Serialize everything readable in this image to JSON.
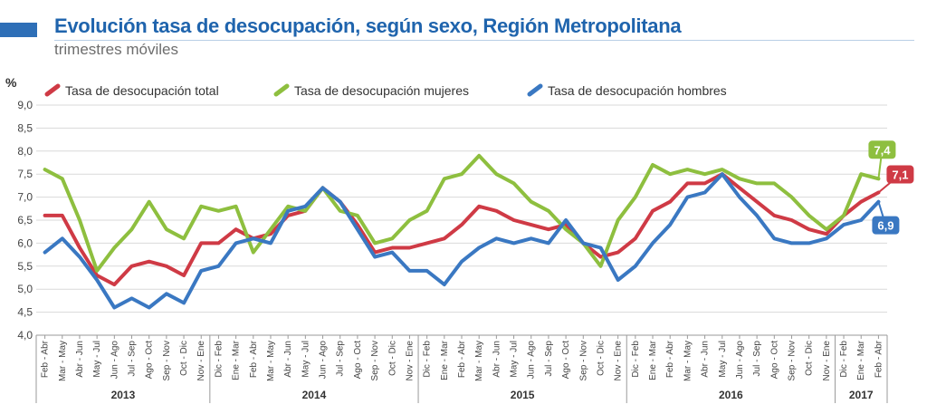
{
  "header": {
    "title": "Evolución tasa de desocupación, según sexo, Región Metropolitana",
    "subtitle": "trimestres móviles"
  },
  "chart_data": {
    "type": "line",
    "ylabel": "%",
    "ylim": [
      4.0,
      9.0
    ],
    "yticks": [
      "4,0",
      "4,5",
      "5,0",
      "5,5",
      "6,0",
      "6,5",
      "7,0",
      "7,5",
      "8,0",
      "8,5",
      "9,0"
    ],
    "grid": true,
    "legend_position": "top",
    "categories": [
      "Feb - Abr",
      "Mar - May",
      "Abr - Jun",
      "May - Jul",
      "Jun - Ago",
      "Jul - Sep",
      "Ago - Oct",
      "Sep - Nov",
      "Oct - Dic",
      "Nov - Ene",
      "Dic - Feb",
      "Ene - Mar",
      "Feb - Abr",
      "Mar - May",
      "Abr - Jun",
      "May - Jul",
      "Jun - Ago",
      "Jul - Sep",
      "Ago - Oct",
      "Sep - Nov",
      "Oct - Dic",
      "Nov - Ene",
      "Dic - Feb",
      "Ene - Mar",
      "Feb - Abr",
      "Mar - May",
      "Abr - Jun",
      "May - Jul",
      "Jun - Ago",
      "Jul - Sep",
      "Ago - Oct",
      "Sep - Nov",
      "Oct - Dic",
      "Nov - Ene",
      "Dic - Feb",
      "Ene - Mar",
      "Feb - Abr",
      "Mar - May",
      "Abr - Jun",
      "May - Jul",
      "Jun - Ago",
      "Jul - Sep",
      "Ago - Oct",
      "Sep - Nov",
      "Oct - Dic",
      "Nov - Ene",
      "Dic - Feb",
      "Ene - Mar",
      "Feb - Abr"
    ],
    "years": [
      {
        "label": "2013",
        "start": 0,
        "end": 9
      },
      {
        "label": "2014",
        "start": 10,
        "end": 21
      },
      {
        "label": "2015",
        "start": 22,
        "end": 33
      },
      {
        "label": "2016",
        "start": 34,
        "end": 45
      },
      {
        "label": "2017",
        "start": 46,
        "end": 48
      }
    ],
    "series": [
      {
        "name": "Tasa de desocupación total",
        "color": "#cf3a45",
        "values": [
          6.6,
          6.6,
          5.9,
          5.3,
          5.1,
          5.5,
          5.6,
          5.5,
          5.3,
          6.0,
          6.0,
          6.3,
          6.1,
          6.2,
          6.6,
          6.7,
          7.2,
          6.9,
          6.4,
          5.8,
          5.9,
          5.9,
          6.0,
          6.1,
          6.4,
          6.8,
          6.7,
          6.5,
          6.4,
          6.3,
          6.4,
          6.0,
          5.7,
          5.8,
          6.1,
          6.7,
          6.9,
          7.3,
          7.3,
          7.5,
          7.2,
          6.9,
          6.6,
          6.5,
          6.3,
          6.2,
          6.6,
          6.9,
          7.1
        ],
        "end_label": "7,1"
      },
      {
        "name": "Tasa de desocupación mujeres",
        "color": "#8ebf3f",
        "values": [
          7.6,
          7.4,
          6.5,
          5.4,
          5.9,
          6.3,
          6.9,
          6.3,
          6.1,
          6.8,
          6.7,
          6.8,
          5.8,
          6.3,
          6.8,
          6.7,
          7.2,
          6.7,
          6.6,
          6.0,
          6.1,
          6.5,
          6.7,
          7.4,
          7.5,
          7.9,
          7.5,
          7.3,
          6.9,
          6.7,
          6.3,
          6.0,
          5.5,
          6.5,
          7.0,
          7.7,
          7.5,
          7.6,
          7.5,
          7.6,
          7.4,
          7.3,
          7.3,
          7.0,
          6.6,
          6.3,
          6.6,
          7.5,
          7.4
        ],
        "end_label": "7,4"
      },
      {
        "name": "Tasa de desocupación hombres",
        "color": "#3a78c2",
        "values": [
          5.8,
          6.1,
          5.7,
          5.2,
          4.6,
          4.8,
          4.6,
          4.9,
          4.7,
          5.4,
          5.5,
          6.0,
          6.1,
          6.0,
          6.7,
          6.8,
          7.2,
          6.9,
          6.3,
          5.7,
          5.8,
          5.4,
          5.4,
          5.1,
          5.6,
          5.9,
          6.1,
          6.0,
          6.1,
          6.0,
          6.5,
          6.0,
          5.9,
          5.2,
          5.5,
          6.0,
          6.4,
          7.0,
          7.1,
          7.5,
          7.0,
          6.6,
          6.1,
          6.0,
          6.0,
          6.1,
          6.4,
          6.5,
          6.9
        ],
        "end_label": "6,9"
      }
    ]
  }
}
